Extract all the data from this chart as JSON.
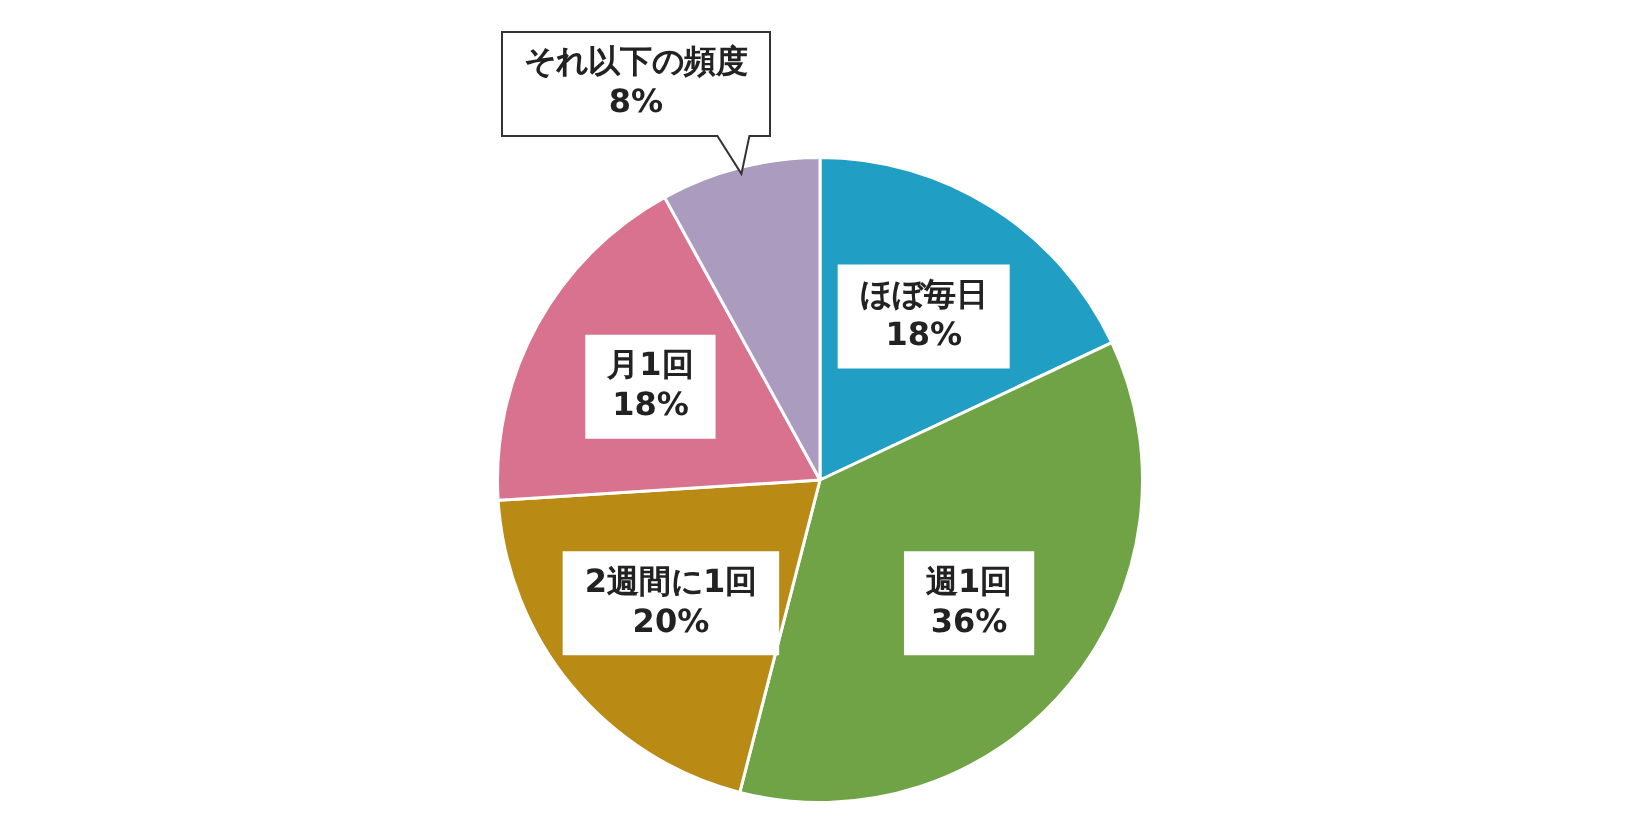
{
  "chart_data": {
    "type": "pie",
    "categories": [
      "ほぼ毎日",
      "週1回",
      "2週間に1回",
      "月1回",
      "それ以下の頻度"
    ],
    "values": [
      18,
      36,
      20,
      18,
      8
    ],
    "colors": [
      "#219ec4",
      "#6fa345",
      "#b98a14",
      "#d8728f",
      "#ab9bbf"
    ],
    "value_labels": [
      "18%",
      "36%",
      "20%",
      "18%",
      "8%"
    ],
    "legend": false
  }
}
